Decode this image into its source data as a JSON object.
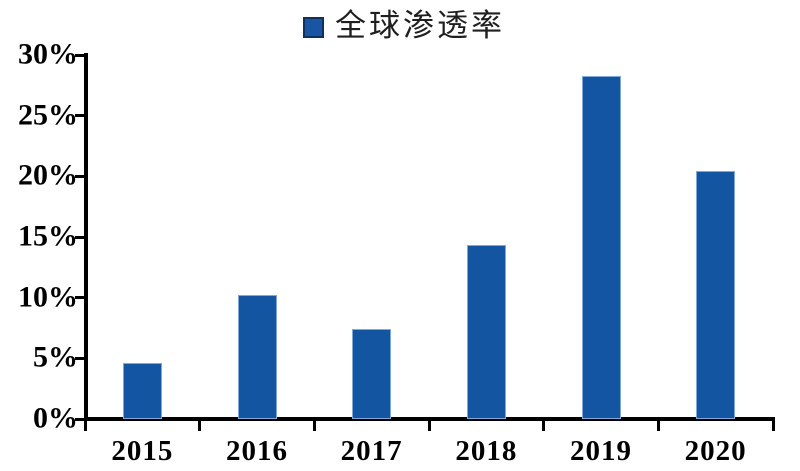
{
  "page": {
    "background": "#ffffff"
  },
  "legend": {
    "label": "全球渗透率",
    "swatch_color": "#1a55a4",
    "swatch_border": "#10305f"
  },
  "chart_data": {
    "type": "bar",
    "title": "",
    "series_name": "全球渗透率",
    "categories": [
      "2015",
      "2016",
      "2017",
      "2018",
      "2019",
      "2020"
    ],
    "values": [
      4.6,
      10.2,
      7.4,
      14.3,
      28.3,
      20.4
    ],
    "unit": "%",
    "ylim": [
      0,
      30
    ],
    "yticks": [
      0,
      5,
      10,
      15,
      20,
      25,
      30
    ],
    "ytick_labels": [
      "0%",
      "5%",
      "10%",
      "15%",
      "20%",
      "25%",
      "30%"
    ],
    "xlabel": "",
    "ylabel": "",
    "bar_color": "#1455a1",
    "bar_edge_color": "#7fa9da",
    "axis_color": "#000000",
    "text_color": "#000000",
    "grid": false,
    "legend_position": "top-center"
  }
}
